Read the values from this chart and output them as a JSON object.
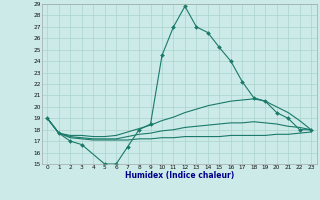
{
  "bg_color": "#cceae7",
  "grid_color": "#aad4d0",
  "line_color": "#1a7a6a",
  "ylim": [
    15,
    29
  ],
  "xlim": [
    -0.5,
    23.5
  ],
  "xlabel": "Humidex (Indice chaleur)",
  "yticks": [
    15,
    16,
    17,
    18,
    19,
    20,
    21,
    22,
    23,
    24,
    25,
    26,
    27,
    28,
    29
  ],
  "xticks": [
    0,
    1,
    2,
    3,
    4,
    5,
    6,
    7,
    8,
    9,
    10,
    11,
    12,
    13,
    14,
    15,
    16,
    17,
    18,
    19,
    20,
    21,
    22,
    23
  ],
  "main_x": [
    0,
    1,
    2,
    3,
    5,
    6,
    7,
    8,
    9,
    10,
    11,
    12,
    13,
    14,
    15,
    16,
    17,
    18,
    19,
    20,
    21,
    22,
    23
  ],
  "main_y": [
    19,
    17.7,
    17.0,
    16.7,
    15.0,
    15.0,
    16.5,
    18.0,
    18.5,
    24.5,
    27.0,
    28.8,
    27.0,
    26.5,
    25.2,
    24.0,
    22.2,
    20.8,
    20.5,
    19.5,
    19.0,
    18.0,
    18.0
  ],
  "upper_x": [
    0,
    1,
    2,
    3,
    4,
    5,
    6,
    7,
    8,
    9,
    10,
    11,
    12,
    13,
    14,
    15,
    16,
    17,
    18,
    19,
    20,
    21,
    22,
    23
  ],
  "upper_y": [
    19,
    17.7,
    17.5,
    17.5,
    17.4,
    17.4,
    17.5,
    17.8,
    18.1,
    18.4,
    18.8,
    19.1,
    19.5,
    19.8,
    20.1,
    20.3,
    20.5,
    20.6,
    20.7,
    20.5,
    20.0,
    19.5,
    18.8,
    18.0
  ],
  "mid_x": [
    0,
    1,
    2,
    3,
    4,
    5,
    6,
    7,
    8,
    9,
    10,
    11,
    12,
    13,
    14,
    15,
    16,
    17,
    18,
    19,
    20,
    21,
    22,
    23
  ],
  "mid_y": [
    19,
    17.7,
    17.4,
    17.3,
    17.2,
    17.2,
    17.2,
    17.4,
    17.6,
    17.7,
    17.9,
    18.0,
    18.2,
    18.3,
    18.4,
    18.5,
    18.6,
    18.6,
    18.7,
    18.6,
    18.5,
    18.3,
    18.2,
    18.0
  ],
  "lower_x": [
    0,
    1,
    2,
    3,
    4,
    5,
    6,
    7,
    8,
    9,
    10,
    11,
    12,
    13,
    14,
    15,
    16,
    17,
    18,
    19,
    20,
    21,
    22,
    23
  ],
  "lower_y": [
    19,
    17.7,
    17.3,
    17.2,
    17.1,
    17.1,
    17.1,
    17.1,
    17.2,
    17.2,
    17.3,
    17.3,
    17.4,
    17.4,
    17.4,
    17.4,
    17.5,
    17.5,
    17.5,
    17.5,
    17.6,
    17.6,
    17.7,
    17.8
  ]
}
